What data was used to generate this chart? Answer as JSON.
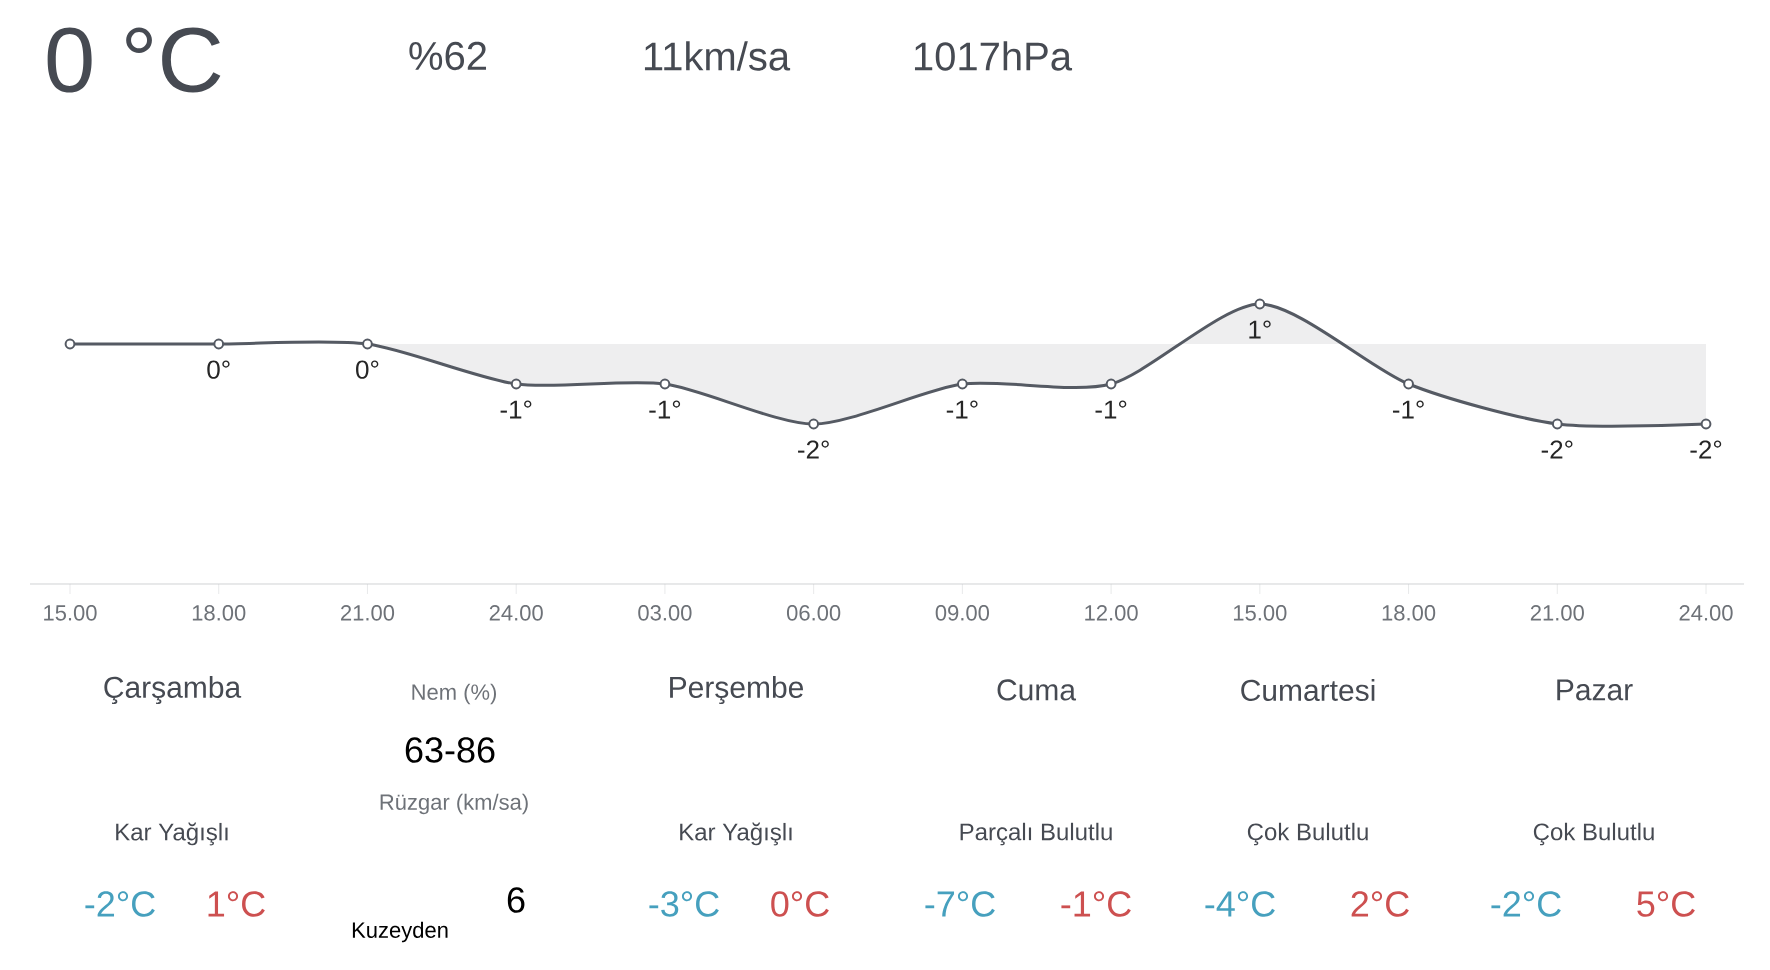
{
  "chart_data": [
    {
      "type": "other",
      "annotations": [
        "0 °C",
        "%62",
        "11km/sa",
        "1017hPa"
      ]
    },
    {
      "type": "area",
      "color": "#555a63",
      "marker": "circle",
      "categories": [
        "15.00",
        "18.00",
        "21.00",
        "24.00",
        "03.00",
        "06.00",
        "09.00",
        "12.00",
        "15.00",
        "18.00",
        "21.00",
        "24.00"
      ],
      "values": [
        0,
        0,
        0,
        -1,
        -1,
        -2,
        -1,
        -1,
        1,
        -1,
        -2,
        -2
      ],
      "value_labels": [
        null,
        "0°",
        "0°",
        "-1°",
        "-1°",
        "-2°",
        "-1°",
        "-1°",
        "1°",
        "-1°",
        "-2°",
        "-2°"
      ],
      "grid": false
    },
    {
      "type": "other",
      "annotations": [
        "Çarşamba",
        "Kar Yağışlı",
        "-2°C",
        "1°C",
        "Nem (%)",
        "63-86",
        "Rüzgar (km/sa)",
        "Kuzeyden",
        "6",
        "Perşembe",
        "Kar Yağışlı",
        "-3°C",
        "0°C",
        "Cuma",
        "Parçalı Bulutlu",
        "-7°C",
        "-1°C",
        "Cumartesi",
        "Çok Bulutlu",
        "-4°C",
        "2°C",
        "Pazar",
        "Çok Bulutlu",
        "-2°C",
        "5°C"
      ]
    }
  ]
}
